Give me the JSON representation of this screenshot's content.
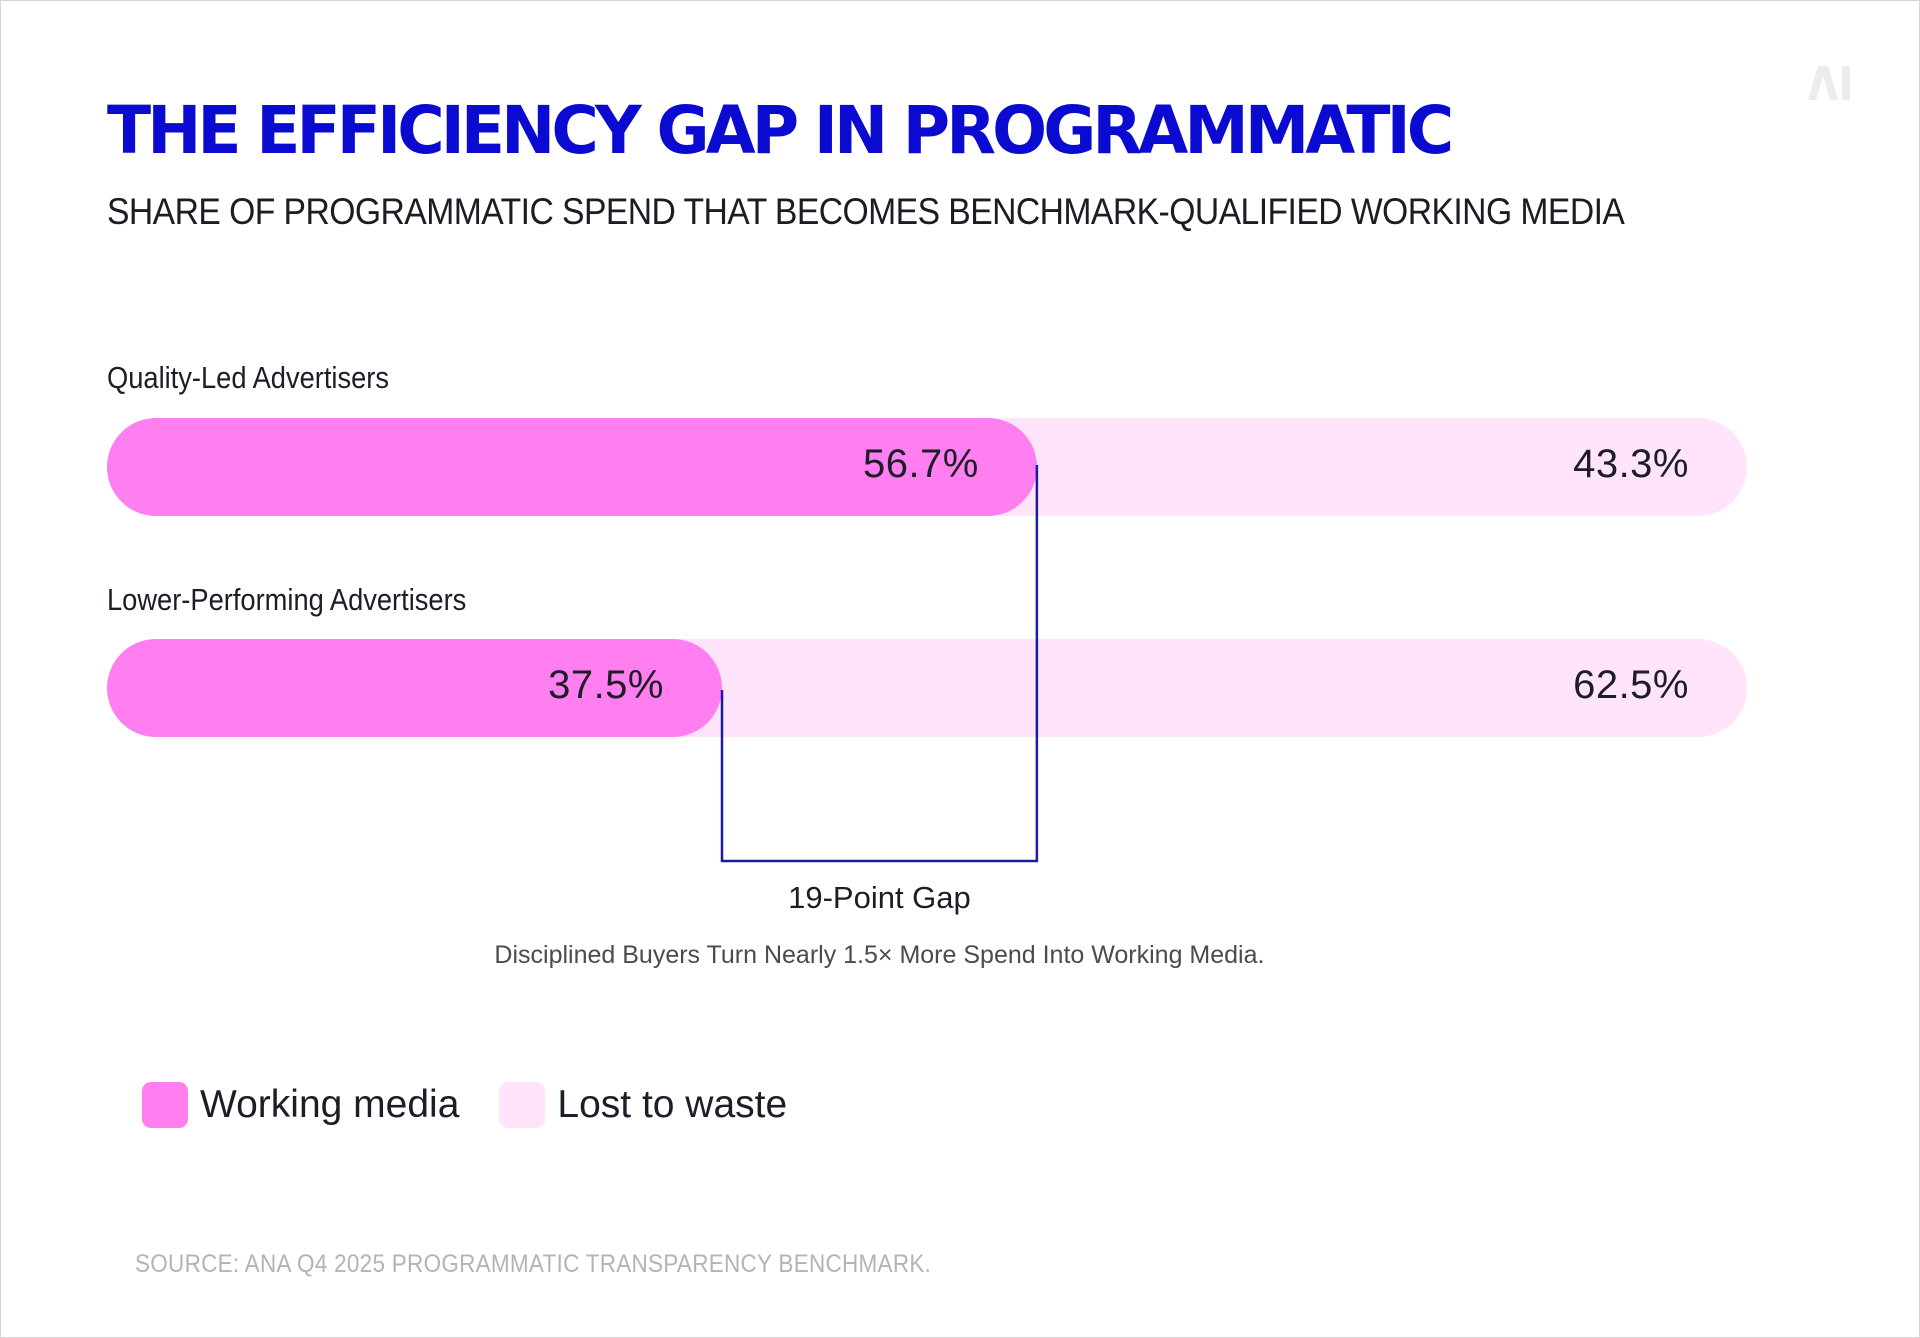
{
  "header": {
    "title": "THE EFFICIENCY GAP IN PROGRAMMATIC",
    "subtitle": "SHARE OF PROGRAMMATIC SPEND THAT BECOMES BENCHMARK-QUALIFIED WORKING MEDIA",
    "logo_text": "AI"
  },
  "chart_data": {
    "type": "bar",
    "orientation": "horizontal",
    "stacked": true,
    "normalized": true,
    "categories": [
      "Quality-Led Advertisers",
      "Lower-Performing Advertisers"
    ],
    "series": [
      {
        "name": "Working media",
        "values": [
          56.7,
          37.5
        ],
        "labels": [
          "56.7%",
          "37.5%"
        ]
      },
      {
        "name": "Lost to waste",
        "values": [
          43.3,
          62.5
        ],
        "labels": [
          "43.3%",
          "62.5%"
        ]
      }
    ],
    "xlim": [
      0,
      100
    ],
    "grid": false,
    "legend_position": "bottom-left",
    "annotation": {
      "label": "19-Point Gap",
      "note": "Disciplined Buyers Turn Nearly 1.5× More Spend Into Working Media."
    }
  },
  "colors": {
    "title": "#0a0ad0",
    "working_media": "#ff7ef0",
    "lost_to_waste": "#ffe4fb",
    "bracket": "#1a1aa6",
    "source": "#b4b4b8"
  },
  "footer": {
    "source": "SOURCE: ANA Q4 2025 PROGRAMMATIC TRANSPARENCY BENCHMARK."
  }
}
